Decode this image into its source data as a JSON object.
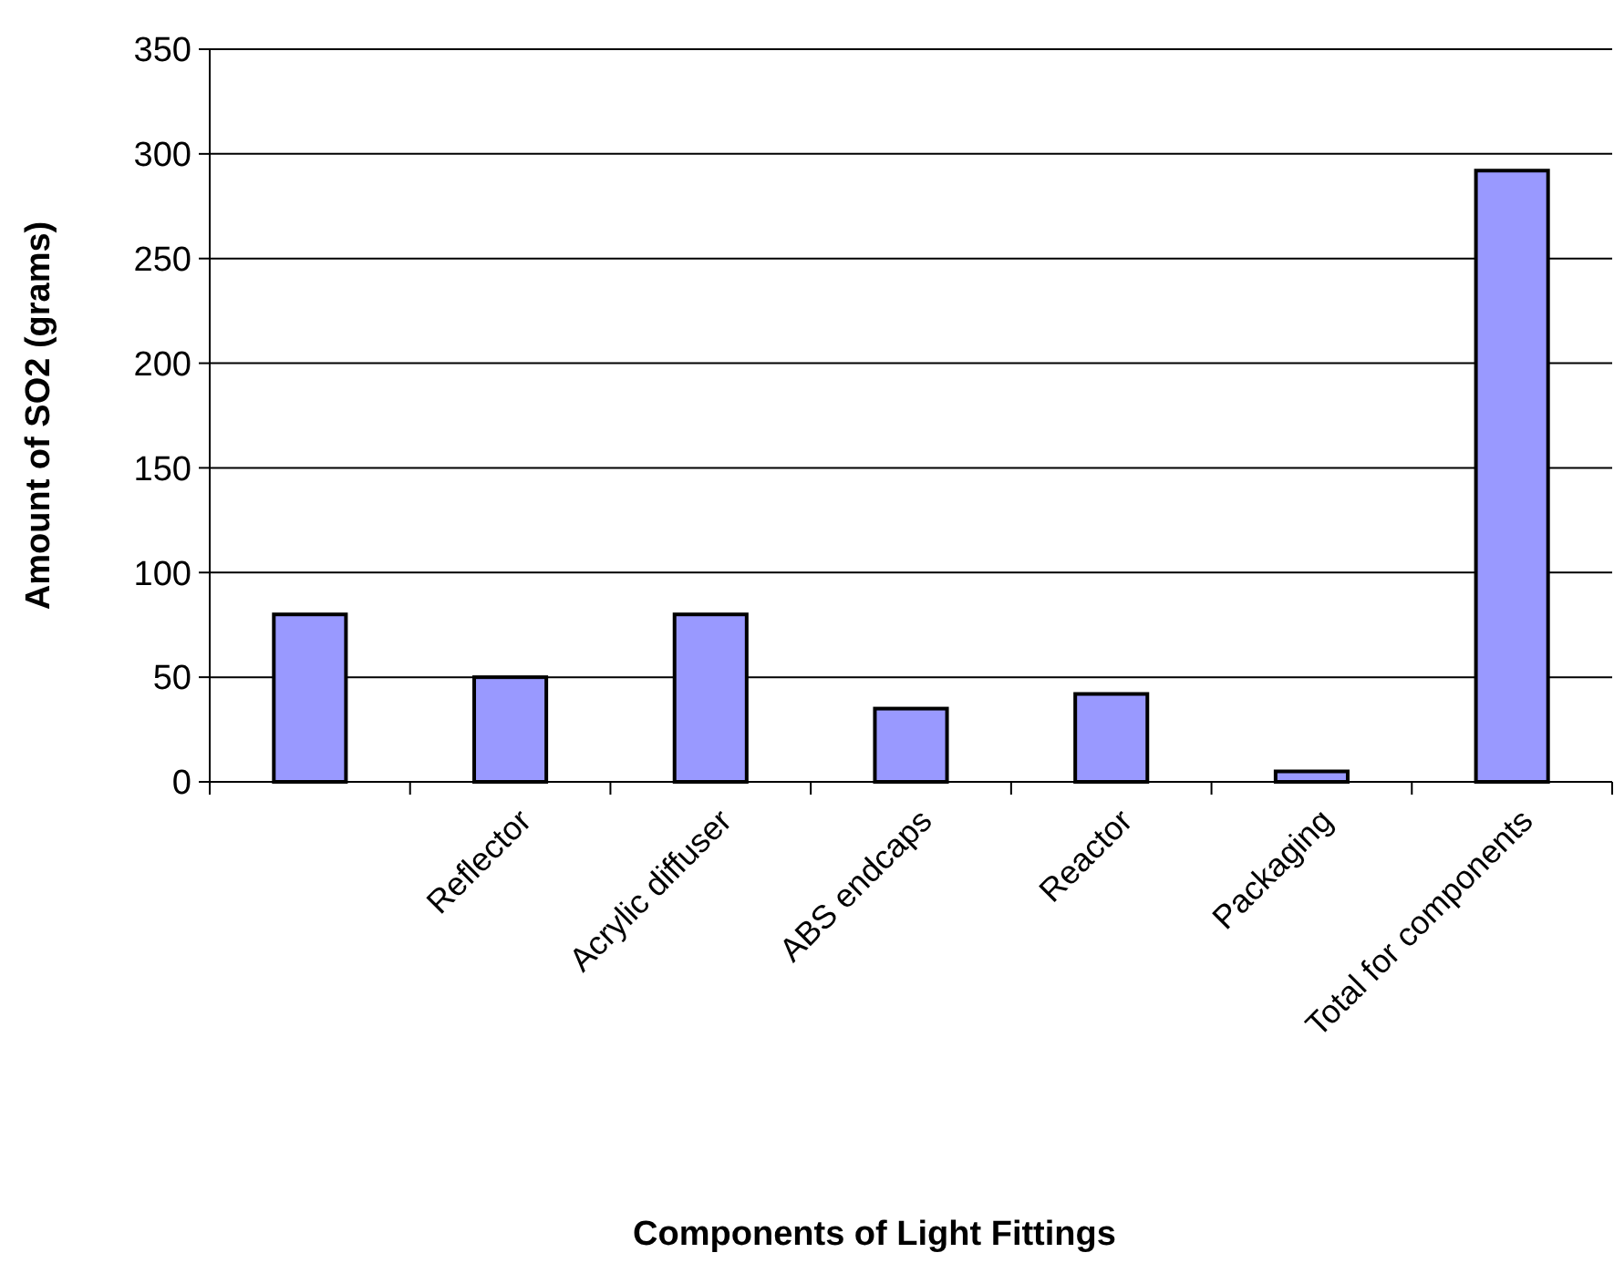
{
  "chart_data": {
    "type": "bar",
    "xlabel": "Components of Light Fittings",
    "ylabel": "Amount of SO2 (grams)",
    "categories": [
      null,
      "Reflector",
      "Acrylic diffuser",
      "ABS endcaps",
      "Reactor",
      "Packaging",
      "Total for components"
    ],
    "values": [
      80,
      50,
      80,
      35,
      42,
      5,
      292
    ],
    "color": "#9999ff",
    "ylim": [
      0,
      350
    ],
    "yticks": [
      0,
      50,
      100,
      150,
      200,
      250,
      300,
      350
    ],
    "grid": "y"
  }
}
